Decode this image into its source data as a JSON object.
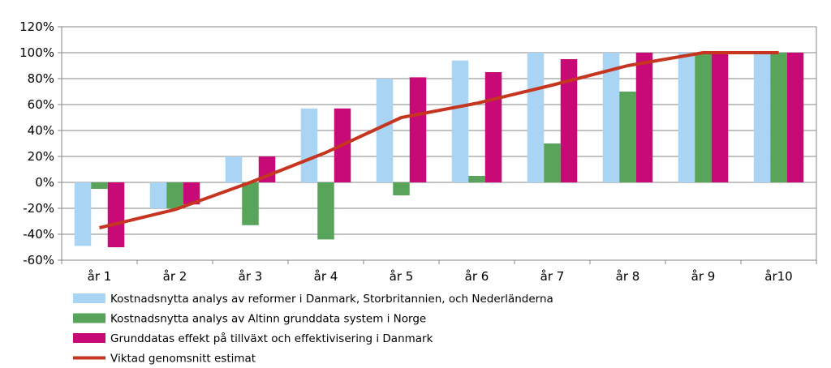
{
  "chart_data": {
    "type": "bar",
    "categories": [
      "år 1",
      "år 2",
      "år 3",
      "år 4",
      "år 5",
      "år 6",
      "år 7",
      "år 8",
      "år 9",
      "år10"
    ],
    "ylim": [
      -60,
      120
    ],
    "yticks": [
      -60,
      -40,
      -20,
      0,
      20,
      40,
      60,
      80,
      100,
      120
    ],
    "ytick_suffix": "%",
    "grid": true,
    "legend_position": "bottom",
    "series": [
      {
        "name": "Kostnadsnytta analys av reformer i Danmark, Storbritannien, och Nederländerna",
        "type": "bar",
        "color": "#a9d4f3",
        "values": [
          -49,
          -20,
          20,
          57,
          80,
          94,
          100,
          100,
          100,
          100
        ]
      },
      {
        "name": "Kostnadsnytta analys av Altinn grunddata system i Norge",
        "type": "bar",
        "color": "#58a45a",
        "values": [
          -5,
          -20,
          -33,
          -44,
          -10,
          5,
          30,
          70,
          100,
          100
        ]
      },
      {
        "name": "Grunddatas effekt på tillväxt och effektivisering i Danmark",
        "type": "bar",
        "color": "#c70a76",
        "values": [
          -50,
          -17,
          20,
          57,
          81,
          85,
          95,
          100,
          100,
          100
        ]
      },
      {
        "name": "Viktad genomsnitt estimat",
        "type": "line",
        "color": "#c63520",
        "values": [
          -35,
          -21,
          0,
          23,
          50,
          61,
          75,
          90,
          100,
          100
        ]
      }
    ]
  }
}
